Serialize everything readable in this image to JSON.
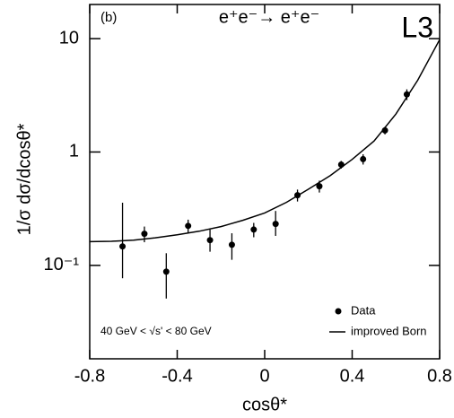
{
  "chart_data": {
    "type": "scatter",
    "panel_label": "(b)",
    "title": "e⁺e⁻→ e⁺e⁻",
    "experiment": "L3",
    "annotation": "40 GeV < √s' < 80 GeV",
    "x_label": "cosθ*",
    "y_label": "1/σ dσ/dcosθ*",
    "xlim": [
      -0.8,
      0.8
    ],
    "xticks": [
      -0.8,
      -0.4,
      0,
      0.4,
      0.8
    ],
    "ylim": [
      0.015,
      20
    ],
    "ylog": true,
    "yticks": [
      {
        "value": 0.1,
        "label": "10⁻¹"
      },
      1,
      10
    ],
    "legend": "lower right",
    "series": [
      {
        "name": "Data",
        "mode": "markers",
        "color": "#000000",
        "x": [
          -0.65,
          -0.55,
          -0.45,
          -0.35,
          -0.25,
          -0.15,
          -0.05,
          0.05,
          0.15,
          0.25,
          0.35,
          0.45,
          0.55,
          0.65
        ],
        "values": [
          0.147,
          0.19,
          0.088,
          0.223,
          0.167,
          0.152,
          0.207,
          0.232,
          0.416,
          0.499,
          0.774,
          0.865,
          1.55,
          3.22
        ],
        "err_minus": [
          0.07,
          0.03,
          0.037,
          0.03,
          0.035,
          0.04,
          0.03,
          0.05,
          0.05,
          0.06,
          0.06,
          0.09,
          0.12,
          0.35
        ],
        "err_plus": [
          0.21,
          0.03,
          0.04,
          0.03,
          0.04,
          0.04,
          0.03,
          0.07,
          0.05,
          0.06,
          0.06,
          0.09,
          0.12,
          0.35
        ]
      },
      {
        "name": "improved Born",
        "mode": "line",
        "color": "#000000",
        "x": [
          -0.8,
          -0.7,
          -0.6,
          -0.5,
          -0.4,
          -0.3,
          -0.2,
          -0.1,
          0,
          0.1,
          0.2,
          0.3,
          0.4,
          0.5,
          0.6,
          0.7,
          0.8
        ],
        "values": [
          0.162,
          0.163,
          0.167,
          0.175,
          0.186,
          0.2,
          0.22,
          0.25,
          0.29,
          0.36,
          0.47,
          0.62,
          0.86,
          1.25,
          2.16,
          4.3,
          9.8
        ]
      }
    ]
  }
}
